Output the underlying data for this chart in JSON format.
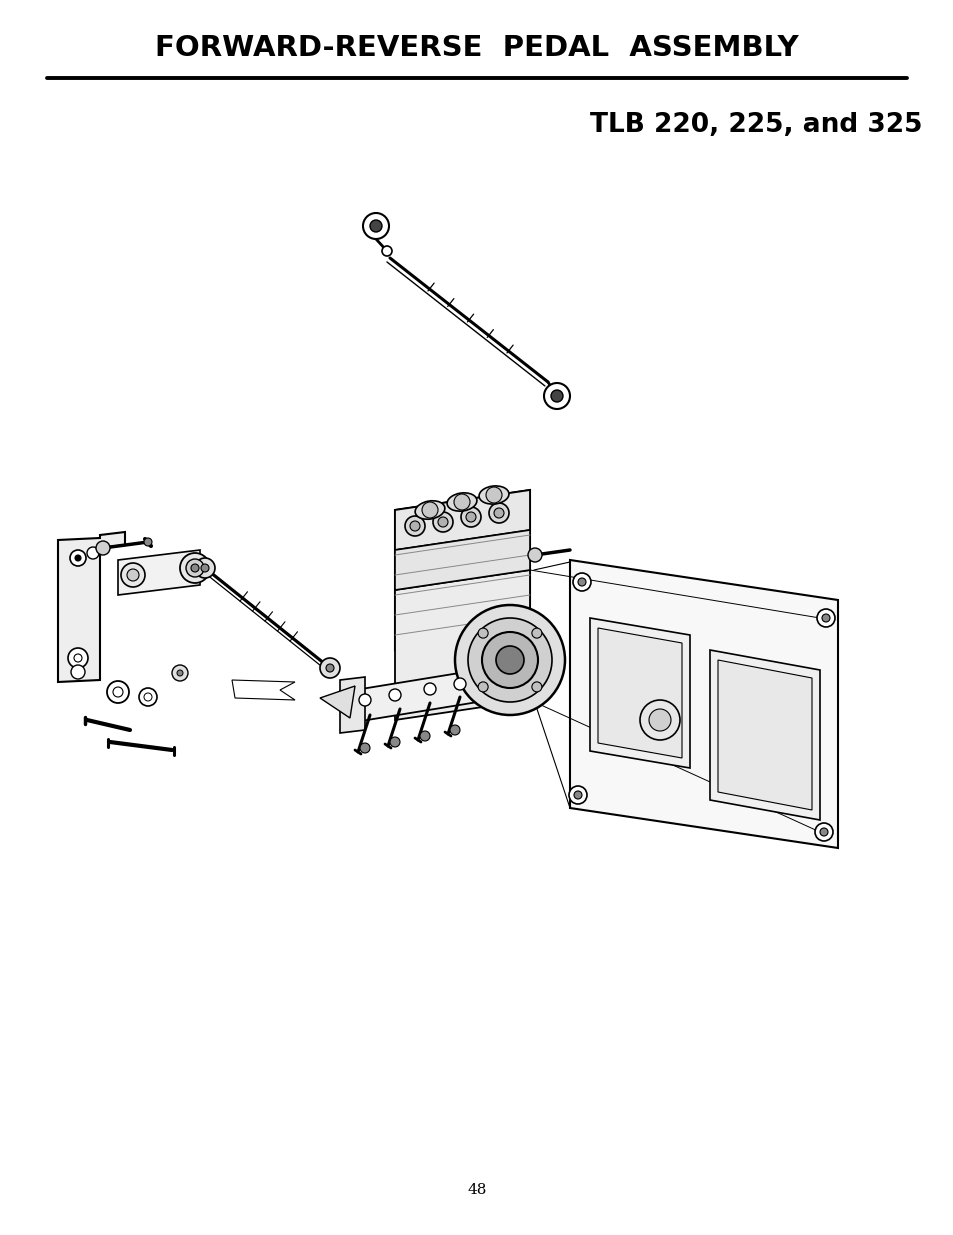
{
  "title": "FORWARD-REVERSE  PEDAL  ASSEMBLY",
  "subtitle": "TLB 220, 225, and 325",
  "page_number": "48",
  "bg_color": "#ffffff",
  "text_color": "#000000",
  "title_fontsize": 21,
  "subtitle_fontsize": 19,
  "page_fontsize": 11,
  "fig_width": 9.54,
  "fig_height": 12.35,
  "dpi": 100
}
